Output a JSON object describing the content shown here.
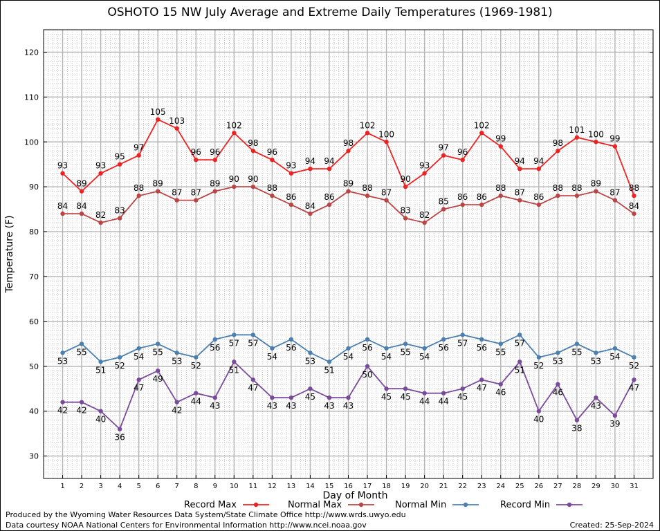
{
  "chart_data": {
    "type": "line",
    "title": "OSHOTO 15 NW July Average and Extreme Daily Temperatures (1969-1981)",
    "xlabel": "Day of Month",
    "ylabel": "Temperature (F)",
    "ylim": [
      25,
      125
    ],
    "yticks": [
      30,
      40,
      50,
      60,
      70,
      80,
      90,
      100,
      110,
      120
    ],
    "x": [
      1,
      2,
      3,
      4,
      5,
      6,
      7,
      8,
      9,
      10,
      11,
      12,
      13,
      14,
      15,
      16,
      17,
      18,
      19,
      20,
      21,
      22,
      23,
      24,
      25,
      26,
      27,
      28,
      29,
      30,
      31
    ],
    "grid": true,
    "series": [
      {
        "name": "Record Max",
        "color": "#ee2222",
        "label_pos": "above",
        "values": [
          93,
          89,
          93,
          95,
          97,
          105,
          103,
          96,
          96,
          102,
          98,
          96,
          93,
          94,
          94,
          98,
          102,
          100,
          90,
          93,
          97,
          96,
          102,
          99,
          94,
          94,
          98,
          101,
          100,
          99,
          88
        ]
      },
      {
        "name": "Normal Max",
        "color": "#bb4444",
        "label_pos": "above",
        "values": [
          84,
          84,
          82,
          83,
          88,
          89,
          87,
          87,
          89,
          90,
          90,
          88,
          86,
          84,
          86,
          89,
          88,
          87,
          83,
          82,
          85,
          86,
          86,
          88,
          87,
          86,
          88,
          88,
          89,
          87,
          84
        ]
      },
      {
        "name": "Normal Min",
        "color": "#4a7fb0",
        "label_pos": "below",
        "values": [
          53,
          55,
          51,
          52,
          54,
          55,
          53,
          52,
          56,
          57,
          57,
          54,
          56,
          53,
          51,
          54,
          56,
          54,
          55,
          54,
          56,
          57,
          56,
          55,
          57,
          52,
          53,
          55,
          53,
          54,
          52
        ]
      },
      {
        "name": "Record Min",
        "color": "#7a4a9a",
        "label_pos": "below",
        "values": [
          42,
          42,
          40,
          36,
          47,
          49,
          42,
          44,
          43,
          51,
          47,
          43,
          43,
          45,
          43,
          43,
          50,
          45,
          45,
          44,
          44,
          45,
          47,
          46,
          51,
          40,
          46,
          38,
          43,
          39,
          47
        ]
      }
    ]
  },
  "footer": {
    "line1": "Produced by the Wyoming Water Resources Data System/State Climate Office http://www.wrds.uwyo.edu",
    "line2": "Data courtesy NOAA National Centers for Environmental Information http://www.ncei.noaa.gov",
    "created": "Created:  25-Sep-2024"
  }
}
